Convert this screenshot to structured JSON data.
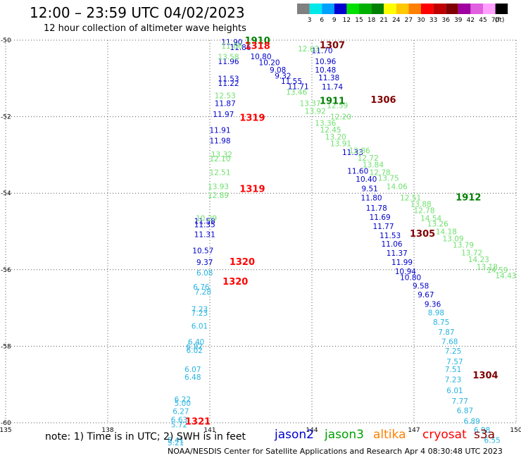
{
  "title": "12:00 – 23:59 UTC 04/02/2023",
  "subtitle": "12 hour collection of altimeter wave heights",
  "legend": {
    "ticks": [
      "3",
      "6",
      "9",
      "12",
      "15",
      "18",
      "21",
      "24",
      "27",
      "30",
      "33",
      "36",
      "39",
      "42",
      "45",
      "70"
    ],
    "unit": "(ft)",
    "colors": [
      "#808080",
      "#00e8e8",
      "#00a0ff",
      "#0000d0",
      "#00e000",
      "#00b000",
      "#008000",
      "#ffff00",
      "#ffc800",
      "#ff8000",
      "#ff0000",
      "#c00000",
      "#800000",
      "#a000a0",
      "#e060e0",
      "#ffa0ff",
      "#000000"
    ]
  },
  "note": "note: 1) Time is in UTC; 2) SWH is in feet",
  "satellites": [
    {
      "name": "jason2",
      "color": "#0000d0"
    },
    {
      "name": "jason3",
      "color": "#00a000"
    },
    {
      "name": "altika",
      "color": "#ff8000"
    },
    {
      "name": "cryosat",
      "color": "#ff0000"
    },
    {
      "name": "s3a",
      "color": "#800000"
    }
  ],
  "footer": "NOAA/NESDIS Center for Satellite Applications and Research   Apr  4 08:30:48 UTC 2023",
  "chart_data": {
    "type": "scatter",
    "title": "12:00 – 23:59 UTC 04/02/2023",
    "subtitle": "12 hour collection of altimeter wave heights",
    "xlim": [
      135,
      150
    ],
    "ylim": [
      -60,
      -50
    ],
    "xticks": [
      "135",
      "138",
      "141",
      "144",
      "147",
      "150"
    ],
    "yticks": [
      "-50",
      "-52",
      "-54",
      "-56",
      "-58",
      "-60"
    ],
    "grid": true,
    "units": "ft",
    "series": [
      {
        "name": "jason2",
        "color": "#0000cc",
        "points": [
          [
            141.65,
            -50.05,
            "11.90"
          ],
          [
            141.9,
            -50.18,
            "11.86"
          ],
          [
            141.55,
            -50.55,
            "11.96"
          ],
          [
            142.5,
            -50.42,
            "10.80"
          ],
          [
            142.75,
            -50.58,
            "10.20"
          ],
          [
            143.0,
            -50.77,
            "9.08"
          ],
          [
            143.15,
            -50.93,
            "9.32"
          ],
          [
            143.4,
            -51.07,
            "11.55"
          ],
          [
            143.6,
            -51.21,
            "11.71"
          ],
          [
            141.55,
            -51.0,
            "11.53"
          ],
          [
            141.55,
            -51.12,
            "11.22"
          ],
          [
            141.45,
            -51.65,
            "11.87"
          ],
          [
            141.4,
            -51.93,
            "11.97"
          ],
          [
            141.3,
            -52.35,
            "11.91"
          ],
          [
            141.3,
            -52.62,
            "11.98"
          ],
          [
            144.3,
            -50.27,
            "11.70"
          ],
          [
            144.4,
            -50.55,
            "10.96"
          ],
          [
            144.4,
            -50.77,
            "10.48"
          ],
          [
            144.5,
            -50.98,
            "11.38"
          ],
          [
            144.6,
            -51.22,
            "11.74"
          ],
          [
            145.2,
            -52.93,
            "11.33"
          ],
          [
            145.35,
            -53.42,
            "11.60"
          ],
          [
            145.6,
            -53.63,
            "10.40"
          ],
          [
            145.7,
            -53.88,
            "9.51"
          ],
          [
            145.75,
            -54.12,
            "11.80"
          ],
          [
            145.9,
            -54.38,
            "11.78"
          ],
          [
            146.0,
            -54.62,
            "11.69"
          ],
          [
            146.1,
            -54.86,
            "11.77"
          ],
          [
            146.3,
            -55.1,
            "11.53"
          ],
          [
            146.35,
            -55.32,
            "11.06"
          ],
          [
            146.5,
            -55.56,
            "11.37"
          ],
          [
            146.65,
            -55.8,
            "11.99"
          ],
          [
            146.75,
            -56.04,
            "10.94"
          ],
          [
            140.85,
            -54.72,
            "11.58"
          ],
          [
            140.85,
            -54.82,
            "11.35"
          ],
          [
            140.85,
            -55.07,
            "11.31"
          ],
          [
            140.8,
            -55.5,
            "10.57"
          ],
          [
            140.85,
            -55.8,
            "9.37"
          ],
          [
            146.9,
            -56.2,
            "10.80"
          ],
          [
            147.2,
            -56.42,
            "9.58"
          ],
          [
            147.35,
            -56.65,
            "9.67"
          ],
          [
            147.55,
            -56.9,
            "9.36"
          ]
        ]
      },
      {
        "name": "jason3",
        "color": "#70e070",
        "points": [
          [
            141.65,
            -50.15,
            "11.86"
          ],
          [
            141.55,
            -50.43,
            "13.58"
          ],
          [
            141.45,
            -51.45,
            "12.53"
          ],
          [
            141.35,
            -52.98,
            "13.32"
          ],
          [
            141.3,
            -53.09,
            "12.10"
          ],
          [
            141.3,
            -53.45,
            "12.51"
          ],
          [
            141.25,
            -53.82,
            "13.93"
          ],
          [
            141.25,
            -54.05,
            "12.89"
          ],
          [
            140.9,
            -54.65,
            "10.29"
          ],
          [
            143.9,
            -50.22,
            "12.63"
          ],
          [
            143.55,
            -51.35,
            "13.46"
          ],
          [
            143.95,
            -51.65,
            "13.37"
          ],
          [
            144.1,
            -51.85,
            "13.92"
          ],
          [
            144.75,
            -51.7,
            "12.59"
          ],
          [
            144.85,
            -52.0,
            "12.20"
          ],
          [
            144.4,
            -52.16,
            "13.36"
          ],
          [
            144.55,
            -52.34,
            "12.45"
          ],
          [
            144.7,
            -52.52,
            "13.20"
          ],
          [
            144.85,
            -52.7,
            "13.91"
          ],
          [
            145.4,
            -52.88,
            "12.86"
          ],
          [
            145.65,
            -53.08,
            "12.72"
          ],
          [
            145.8,
            -53.25,
            "13.84"
          ],
          [
            146.0,
            -53.45,
            "12.78"
          ],
          [
            146.25,
            -53.6,
            "13.75"
          ],
          [
            146.5,
            -53.82,
            "14.06"
          ],
          [
            146.9,
            -54.12,
            "12.51"
          ],
          [
            147.2,
            -54.28,
            "13.88"
          ],
          [
            147.3,
            -54.45,
            "12.78"
          ],
          [
            147.5,
            -54.65,
            "14.54"
          ],
          [
            147.7,
            -54.8,
            "13.26"
          ],
          [
            147.95,
            -55.0,
            "14.18"
          ],
          [
            148.15,
            -55.18,
            "13.09"
          ],
          [
            148.45,
            -55.35,
            "13.79"
          ],
          [
            148.7,
            -55.55,
            "13.72"
          ],
          [
            148.9,
            -55.73,
            "14.23"
          ],
          [
            149.15,
            -55.92,
            "13.18"
          ],
          [
            149.45,
            -56.0,
            "14.59"
          ],
          [
            149.7,
            -56.15,
            "14.43"
          ]
        ]
      },
      {
        "name": "altika",
        "color": "#28b4e0",
        "points": [
          [
            140.85,
            -56.08,
            "6.08"
          ],
          [
            140.75,
            -56.45,
            "6.76"
          ],
          [
            140.8,
            -56.57,
            "7.28"
          ],
          [
            140.7,
            -57.03,
            "7.23"
          ],
          [
            140.7,
            -57.13,
            "7.23"
          ],
          [
            140.7,
            -57.47,
            "6.01"
          ],
          [
            140.6,
            -57.88,
            "6.40"
          ],
          [
            140.55,
            -58.0,
            "6.82"
          ],
          [
            140.55,
            -58.1,
            "6.02"
          ],
          [
            140.5,
            -58.6,
            "6.07"
          ],
          [
            140.5,
            -58.8,
            "6.48"
          ],
          [
            140.2,
            -59.38,
            "6.22"
          ],
          [
            140.2,
            -59.48,
            "5.00"
          ],
          [
            140.15,
            -59.7,
            "6.27"
          ],
          [
            140.1,
            -59.92,
            "6.63"
          ],
          [
            140.1,
            -60.05,
            "5.72"
          ],
          [
            140.0,
            -60.45,
            "5.41"
          ],
          [
            140.0,
            -60.52,
            "5.21"
          ],
          [
            147.65,
            -57.12,
            "8.98"
          ],
          [
            147.8,
            -57.37,
            "8.75"
          ],
          [
            147.95,
            -57.62,
            "7.87"
          ],
          [
            148.05,
            -57.87,
            "7.68"
          ],
          [
            148.15,
            -58.12,
            "7.25"
          ],
          [
            148.2,
            -58.4,
            "7.57"
          ],
          [
            148.15,
            -58.6,
            "7.51"
          ],
          [
            148.15,
            -58.87,
            "7.23"
          ],
          [
            148.2,
            -59.15,
            "6.01"
          ],
          [
            148.35,
            -59.43,
            "7.77"
          ],
          [
            148.5,
            -59.68,
            "6.87"
          ],
          [
            148.7,
            -59.95,
            "6.89"
          ],
          [
            149.0,
            -60.18,
            "6.98"
          ],
          [
            149.3,
            -60.45,
            "6.55"
          ]
        ]
      }
    ],
    "annotations": [
      {
        "text": "1910",
        "x": 142.4,
        "y": -50.0,
        "color": "#008000"
      },
      {
        "text": "1318",
        "x": 142.4,
        "y": -50.14,
        "color": "#ff0000"
      },
      {
        "text": "1307",
        "x": 144.6,
        "y": -50.12,
        "color": "#800000"
      },
      {
        "text": "1911",
        "x": 144.6,
        "y": -51.57,
        "color": "#008000"
      },
      {
        "text": "1306",
        "x": 146.1,
        "y": -51.55,
        "color": "#800000"
      },
      {
        "text": "1319",
        "x": 142.25,
        "y": -52.02,
        "color": "#ff0000"
      },
      {
        "text": "1319",
        "x": 142.25,
        "y": -53.88,
        "color": "#ff0000"
      },
      {
        "text": "1912",
        "x": 148.6,
        "y": -54.1,
        "color": "#008000"
      },
      {
        "text": "1305",
        "x": 147.25,
        "y": -55.05,
        "color": "#800000"
      },
      {
        "text": "1320",
        "x": 141.95,
        "y": -55.78,
        "color": "#ff0000"
      },
      {
        "text": "1320",
        "x": 141.75,
        "y": -56.3,
        "color": "#ff0000"
      },
      {
        "text": "1304",
        "x": 149.1,
        "y": -58.75,
        "color": "#800000"
      },
      {
        "text": "1321",
        "x": 140.65,
        "y": -59.95,
        "color": "#ff0000"
      }
    ]
  }
}
